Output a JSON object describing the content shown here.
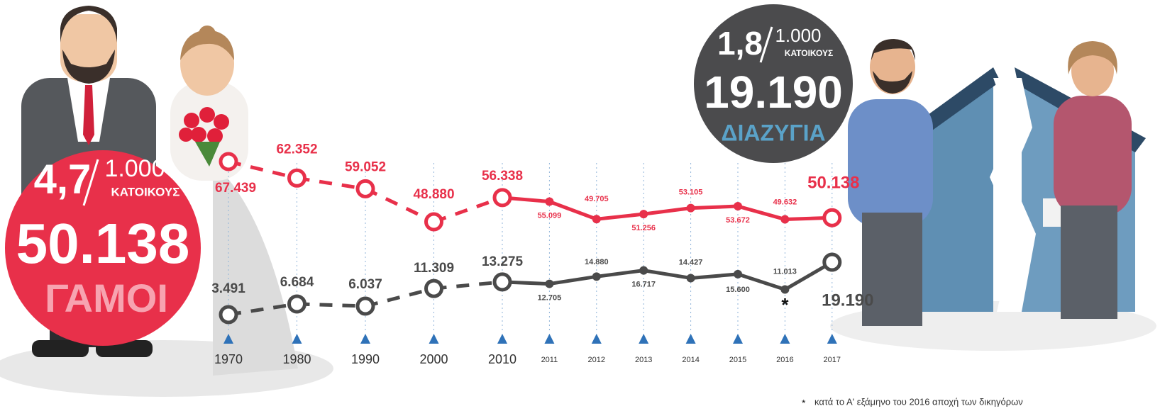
{
  "chart_data": {
    "type": "line",
    "categories": [
      "1970",
      "1980",
      "1990",
      "2000",
      "2010",
      "2011",
      "2012",
      "2013",
      "2014",
      "2015",
      "2016",
      "2017"
    ],
    "series": [
      {
        "name": "ΓΑΜΟΙ",
        "color": "#e8304a",
        "values": [
          67439,
          62352,
          59052,
          48880,
          56338,
          55099,
          49705,
          51256,
          53105,
          53672,
          49632,
          50138
        ],
        "value_labels": [
          "67.439",
          "62.352",
          "59.052",
          "48.880",
          "56.338",
          "55.099",
          "49.705",
          "51.256",
          "53.105",
          "53.672",
          "49.632",
          "50.138"
        ]
      },
      {
        "name": "ΔΙΑΖΥΓΙΑ",
        "color": "#4a4a4a",
        "values": [
          3491,
          6684,
          6037,
          11309,
          13275,
          12705,
          14880,
          16717,
          14427,
          15600,
          11013,
          19190
        ],
        "value_labels": [
          "3.491",
          "6.684",
          "6.037",
          "11.309",
          "13.275",
          "12.705",
          "14.880",
          "16.717",
          "14.427",
          "15.600",
          "11.013",
          "19.190"
        ]
      }
    ]
  },
  "marriage_badge": {
    "rate": "4,7",
    "per": "1.000",
    "unit": "ΚΑΤΟΙΚΟΥΣ",
    "total": "50.138",
    "label": "ΓΑΜΟΙ"
  },
  "divorce_badge": {
    "rate": "1,8",
    "per": "1.000",
    "unit": "ΚΑΤΟΙΚΟΥΣ",
    "total": "19.190",
    "label": "ΔΙΑΖΥΓΙΑ"
  },
  "footnote": {
    "marker": "*",
    "text": "κατά το Α' εξάμηνο του 2016 αποχή των δικηγόρων"
  }
}
